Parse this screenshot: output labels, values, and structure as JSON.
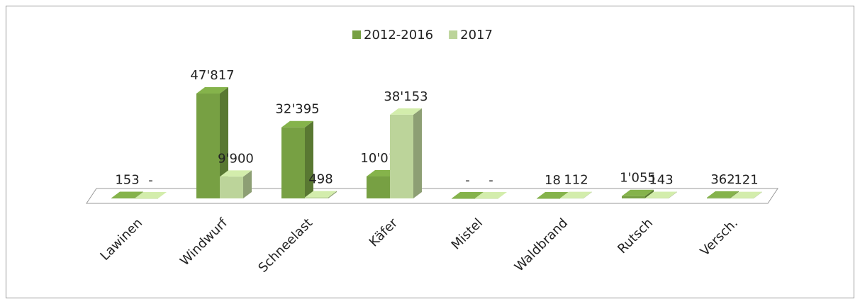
{
  "chart_data": {
    "type": "bar3d",
    "categories": [
      "Lawinen",
      "Windwurf",
      "Schneelast",
      "Käfer",
      "Mistel",
      "Waldbrand",
      "Rutsch",
      "Versch."
    ],
    "series": [
      {
        "name": "2012-2016",
        "color": "#77a043",
        "values": [
          153,
          47817,
          32395,
          10011,
          0,
          18,
          1055,
          362
        ],
        "value_labels": [
          "153",
          "47'817",
          "32'395",
          "10'011",
          "-",
          "18",
          "1'055",
          "362"
        ]
      },
      {
        "name": "2017",
        "color": "#bcd49a",
        "values": [
          0,
          9900,
          498,
          38153,
          0,
          112,
          143,
          121
        ],
        "value_labels": [
          "-",
          "9'900",
          "498",
          "38'153",
          "-",
          "112",
          "143",
          "121"
        ]
      }
    ],
    "legend": "top"
  }
}
